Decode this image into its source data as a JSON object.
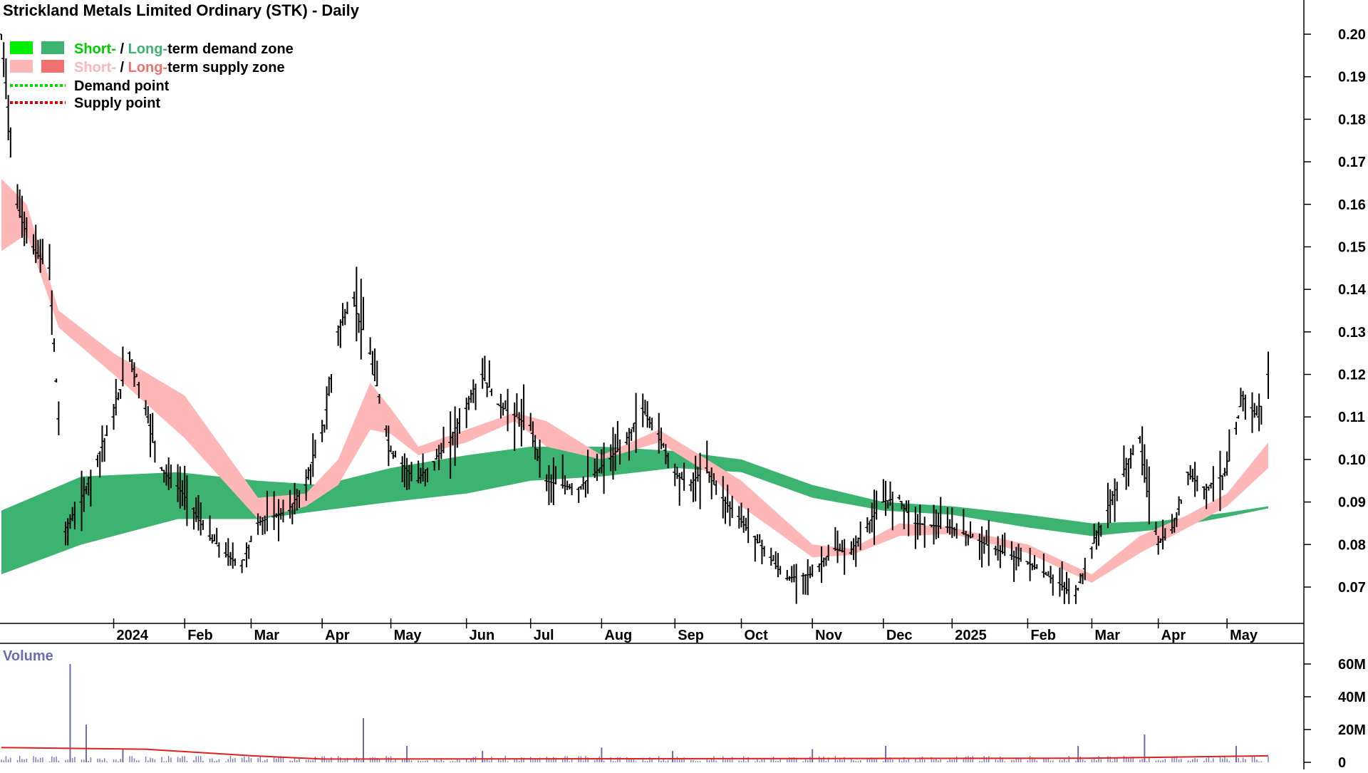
{
  "chart_data": {
    "type": "candlestick",
    "title": "Strickland Metals Limited Ordinary (STK) - Daily",
    "legend": {
      "placement": "top-left",
      "items": [
        {
          "short_label": "Short-",
          "separator": " / ",
          "long_label": "Long-",
          "rest": "term demand zone",
          "short_color": "#00ee00",
          "long_color": "#3cb371"
        },
        {
          "short_label": "Short-",
          "separator": " / ",
          "long_label": "Long-",
          "rest": "term supply zone",
          "short_color": "#ffb6b6",
          "long_color": "#f07070"
        },
        {
          "label": "Demand point",
          "color": "#00dd00",
          "style": "dotted"
        },
        {
          "label": "Supply point",
          "color": "#dd0000",
          "style": "dotted"
        }
      ]
    },
    "price_axis": {
      "position": "right",
      "ylim": [
        0.06,
        0.2
      ],
      "ticks": [
        "0.20",
        "0.19",
        "0.18",
        "0.17",
        "0.16",
        "0.15",
        "0.14",
        "0.13",
        "0.12",
        "0.11",
        "0.10",
        "0.09",
        "0.08",
        "0.07"
      ]
    },
    "time_axis": {
      "start": "2023-11-13",
      "end": "2025-05-19",
      "labels": [
        {
          "date": "2024-01-01",
          "label": "2024"
        },
        {
          "date": "2024-02-01",
          "label": "Feb"
        },
        {
          "date": "2024-03-01",
          "label": "Mar"
        },
        {
          "date": "2024-04-01",
          "label": "Apr"
        },
        {
          "date": "2024-05-01",
          "label": "May"
        },
        {
          "date": "2024-06-03",
          "label": "Jun"
        },
        {
          "date": "2024-07-01",
          "label": "Jul"
        },
        {
          "date": "2024-08-01",
          "label": "Aug"
        },
        {
          "date": "2024-09-02",
          "label": "Sep"
        },
        {
          "date": "2024-10-01",
          "label": "Oct"
        },
        {
          "date": "2024-11-01",
          "label": "Nov"
        },
        {
          "date": "2024-12-02",
          "label": "Dec"
        },
        {
          "date": "2025-01-01",
          "label": "2025"
        },
        {
          "date": "2025-02-03",
          "label": "Feb"
        },
        {
          "date": "2025-03-03",
          "label": "Mar"
        },
        {
          "date": "2025-04-01",
          "label": "Apr"
        },
        {
          "date": "2025-05-01",
          "label": "May"
        }
      ]
    },
    "price_series": [
      {
        "date": "2023-11-13",
        "close": 0.2
      },
      {
        "date": "2023-11-20",
        "close": 0.16
      },
      {
        "date": "2023-11-27",
        "close": 0.15
      },
      {
        "date": "2023-12-04",
        "close": 0.145
      },
      {
        "date": "2023-12-11",
        "close": 0.083
      },
      {
        "date": "2023-12-18",
        "close": 0.09
      },
      {
        "date": "2024-01-01",
        "close": 0.11
      },
      {
        "date": "2024-01-08",
        "close": 0.125
      },
      {
        "date": "2024-01-15",
        "close": 0.112
      },
      {
        "date": "2024-01-22",
        "close": 0.098
      },
      {
        "date": "2024-02-01",
        "close": 0.092
      },
      {
        "date": "2024-02-12",
        "close": 0.082
      },
      {
        "date": "2024-02-19",
        "close": 0.078
      },
      {
        "date": "2024-02-26",
        "close": 0.075
      },
      {
        "date": "2024-03-04",
        "close": 0.085
      },
      {
        "date": "2024-03-18",
        "close": 0.088
      },
      {
        "date": "2024-03-25",
        "close": 0.094
      },
      {
        "date": "2024-04-02",
        "close": 0.108
      },
      {
        "date": "2024-04-08",
        "close": 0.13
      },
      {
        "date": "2024-04-15",
        "close": 0.138
      },
      {
        "date": "2024-04-22",
        "close": 0.125
      },
      {
        "date": "2024-05-01",
        "close": 0.102
      },
      {
        "date": "2024-05-13",
        "close": 0.095
      },
      {
        "date": "2024-05-27",
        "close": 0.104
      },
      {
        "date": "2024-06-03",
        "close": 0.112
      },
      {
        "date": "2024-06-10",
        "close": 0.12
      },
      {
        "date": "2024-06-17",
        "close": 0.113
      },
      {
        "date": "2024-07-01",
        "close": 0.108
      },
      {
        "date": "2024-07-08",
        "close": 0.095
      },
      {
        "date": "2024-07-22",
        "close": 0.093
      },
      {
        "date": "2024-08-01",
        "close": 0.098
      },
      {
        "date": "2024-08-12",
        "close": 0.104
      },
      {
        "date": "2024-08-19",
        "close": 0.112
      },
      {
        "date": "2024-08-26",
        "close": 0.106
      },
      {
        "date": "2024-09-02",
        "close": 0.097
      },
      {
        "date": "2024-09-09",
        "close": 0.094
      },
      {
        "date": "2024-09-16",
        "close": 0.098
      },
      {
        "date": "2024-09-23",
        "close": 0.091
      },
      {
        "date": "2024-10-01",
        "close": 0.086
      },
      {
        "date": "2024-10-14",
        "close": 0.077
      },
      {
        "date": "2024-10-21",
        "close": 0.072
      },
      {
        "date": "2024-11-01",
        "close": 0.073
      },
      {
        "date": "2024-11-11",
        "close": 0.079
      },
      {
        "date": "2024-11-18",
        "close": 0.078
      },
      {
        "date": "2024-12-02",
        "close": 0.09
      },
      {
        "date": "2024-12-09",
        "close": 0.091
      },
      {
        "date": "2024-12-16",
        "close": 0.085
      },
      {
        "date": "2025-01-01",
        "close": 0.084
      },
      {
        "date": "2025-01-13",
        "close": 0.081
      },
      {
        "date": "2025-01-20",
        "close": 0.079
      },
      {
        "date": "2025-02-03",
        "close": 0.076
      },
      {
        "date": "2025-02-17",
        "close": 0.071
      },
      {
        "date": "2025-02-24",
        "close": 0.068
      },
      {
        "date": "2025-03-03",
        "close": 0.079
      },
      {
        "date": "2025-03-10",
        "close": 0.088
      },
      {
        "date": "2025-03-24",
        "close": 0.105
      },
      {
        "date": "2025-04-01",
        "close": 0.08
      },
      {
        "date": "2025-04-08",
        "close": 0.084
      },
      {
        "date": "2025-04-14",
        "close": 0.097
      },
      {
        "date": "2025-04-22",
        "close": 0.093
      },
      {
        "date": "2025-05-01",
        "close": 0.097
      },
      {
        "date": "2025-05-08",
        "close": 0.115
      },
      {
        "date": "2025-05-15",
        "close": 0.11
      },
      {
        "date": "2025-05-19",
        "close": 0.12
      }
    ],
    "long_term_band": [
      {
        "date": "2023-11-13",
        "upper": 0.088,
        "lower": 0.073
      },
      {
        "date": "2023-12-18",
        "upper": 0.096,
        "lower": 0.08
      },
      {
        "date": "2024-01-29",
        "upper": 0.097,
        "lower": 0.086
      },
      {
        "date": "2024-03-04",
        "upper": 0.095,
        "lower": 0.086
      },
      {
        "date": "2024-04-01",
        "upper": 0.094,
        "lower": 0.088
      },
      {
        "date": "2024-05-01",
        "upper": 0.098,
        "lower": 0.09
      },
      {
        "date": "2024-06-03",
        "upper": 0.101,
        "lower": 0.092
      },
      {
        "date": "2024-07-01",
        "upper": 0.103,
        "lower": 0.095
      },
      {
        "date": "2024-08-01",
        "upper": 0.103,
        "lower": 0.096
      },
      {
        "date": "2024-09-02",
        "upper": 0.102,
        "lower": 0.098
      },
      {
        "date": "2024-10-01",
        "upper": 0.1,
        "lower": 0.097
      },
      {
        "date": "2024-11-01",
        "upper": 0.094,
        "lower": 0.091
      },
      {
        "date": "2024-12-02",
        "upper": 0.09,
        "lower": 0.088
      },
      {
        "date": "2025-01-01",
        "upper": 0.089,
        "lower": 0.087
      },
      {
        "date": "2025-02-03",
        "upper": 0.087,
        "lower": 0.084
      },
      {
        "date": "2025-03-03",
        "upper": 0.085,
        "lower": 0.082
      },
      {
        "date": "2025-04-01",
        "upper": 0.0855,
        "lower": 0.0835
      },
      {
        "date": "2025-05-01",
        "upper": 0.0875,
        "lower": 0.0865
      },
      {
        "date": "2025-05-19",
        "upper": 0.089,
        "lower": 0.0885
      }
    ],
    "short_term_band": [
      {
        "date": "2023-11-13",
        "upper": 0.166,
        "lower": 0.149
      },
      {
        "date": "2023-11-24",
        "upper": 0.16,
        "lower": 0.153
      },
      {
        "date": "2023-12-08",
        "upper": 0.135,
        "lower": 0.131
      },
      {
        "date": "2024-01-01",
        "upper": 0.125,
        "lower": 0.12
      },
      {
        "date": "2024-02-01",
        "upper": 0.115,
        "lower": 0.105
      },
      {
        "date": "2024-03-04",
        "upper": 0.091,
        "lower": 0.086
      },
      {
        "date": "2024-03-25",
        "upper": 0.092,
        "lower": 0.089
      },
      {
        "date": "2024-04-08",
        "upper": 0.1,
        "lower": 0.094
      },
      {
        "date": "2024-04-22",
        "upper": 0.118,
        "lower": 0.107
      },
      {
        "date": "2024-05-01",
        "upper": 0.112,
        "lower": 0.106
      },
      {
        "date": "2024-05-13",
        "upper": 0.103,
        "lower": 0.101
      },
      {
        "date": "2024-06-03",
        "upper": 0.107,
        "lower": 0.104
      },
      {
        "date": "2024-06-24",
        "upper": 0.111,
        "lower": 0.109
      },
      {
        "date": "2024-07-08",
        "upper": 0.109,
        "lower": 0.103
      },
      {
        "date": "2024-08-01",
        "upper": 0.101,
        "lower": 0.1
      },
      {
        "date": "2024-08-26",
        "upper": 0.107,
        "lower": 0.104
      },
      {
        "date": "2024-09-16",
        "upper": 0.1,
        "lower": 0.097
      },
      {
        "date": "2024-10-01",
        "upper": 0.095,
        "lower": 0.089
      },
      {
        "date": "2024-11-01",
        "upper": 0.08,
        "lower": 0.077
      },
      {
        "date": "2024-11-18",
        "upper": 0.079,
        "lower": 0.0775
      },
      {
        "date": "2024-12-09",
        "upper": 0.085,
        "lower": 0.082
      },
      {
        "date": "2025-01-01",
        "upper": 0.084,
        "lower": 0.0825
      },
      {
        "date": "2025-02-03",
        "upper": 0.08,
        "lower": 0.078
      },
      {
        "date": "2025-03-03",
        "upper": 0.073,
        "lower": 0.071
      },
      {
        "date": "2025-03-24",
        "upper": 0.082,
        "lower": 0.078
      },
      {
        "date": "2025-04-14",
        "upper": 0.087,
        "lower": 0.084
      },
      {
        "date": "2025-05-01",
        "upper": 0.092,
        "lower": 0.089
      },
      {
        "date": "2025-05-19",
        "upper": 0.104,
        "lower": 0.098
      }
    ],
    "volume": {
      "label": "Volume",
      "ticks": [
        "60M",
        "40M",
        "20M",
        "0"
      ],
      "ylim": [
        0,
        60
      ],
      "unit": "M",
      "spikes": [
        {
          "date": "2023-12-13",
          "value": 60
        },
        {
          "date": "2023-12-20",
          "value": 23
        },
        {
          "date": "2024-01-05",
          "value": 8
        },
        {
          "date": "2024-04-19",
          "value": 27
        },
        {
          "date": "2024-05-08",
          "value": 10
        },
        {
          "date": "2024-06-10",
          "value": 7
        },
        {
          "date": "2024-08-01",
          "value": 9
        },
        {
          "date": "2024-09-01",
          "value": 7
        },
        {
          "date": "2024-11-01",
          "value": 8
        },
        {
          "date": "2024-12-03",
          "value": 10
        },
        {
          "date": "2025-02-25",
          "value": 10
        },
        {
          "date": "2025-03-26",
          "value": 17
        },
        {
          "date": "2025-05-05",
          "value": 10
        }
      ],
      "average": [
        {
          "date": "2023-11-13",
          "value": 9
        },
        {
          "date": "2024-01-15",
          "value": 8
        },
        {
          "date": "2024-03-01",
          "value": 4
        },
        {
          "date": "2024-04-01",
          "value": 2
        },
        {
          "date": "2025-03-01",
          "value": 2.5
        },
        {
          "date": "2025-05-19",
          "value": 4
        }
      ]
    }
  }
}
